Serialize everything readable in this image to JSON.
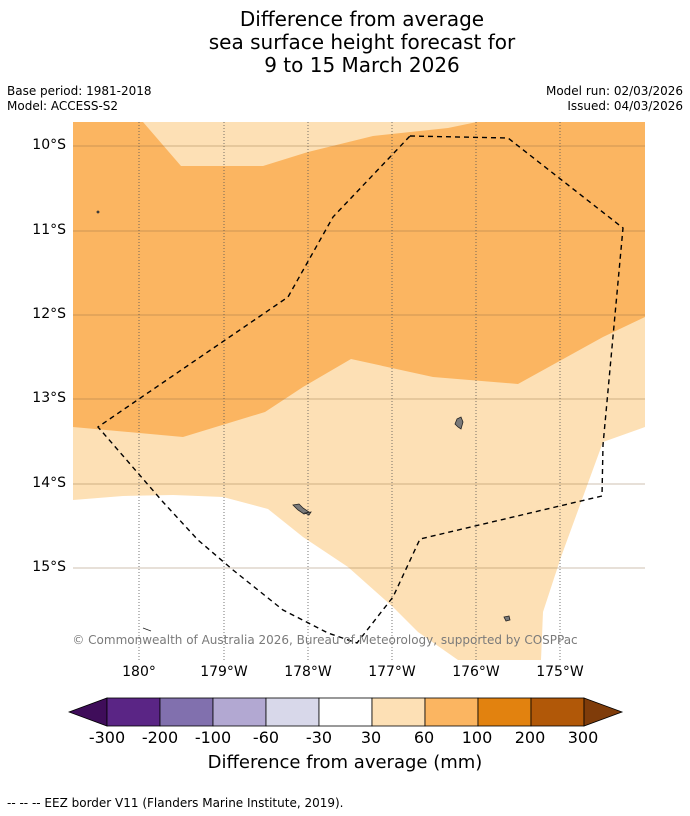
{
  "title": {
    "line1": "Difference from average",
    "line2": "sea surface height forecast for",
    "line3": "9 to 15 March 2026"
  },
  "meta": {
    "base_period": "Base period: 1981-2018",
    "model": "Model: ACCESS-S2",
    "model_run": "Model run: 02/03/2026",
    "issued": "Issued: 04/03/2026"
  },
  "latitude_labels": [
    "10°S",
    "11°S",
    "12°S",
    "13°S",
    "14°S",
    "15°S"
  ],
  "longitude_labels": [
    "180°",
    "179°W",
    "178°W",
    "177°W",
    "176°W",
    "175°W"
  ],
  "credit": "© Commonwealth of Australia 2026, Bureau of Meteorology, supported by COSPPac",
  "colorbar": {
    "label": "Difference from average (mm)",
    "ticks": [
      "-300",
      "-200",
      "-100",
      "-60",
      "-30",
      "30",
      "60",
      "100",
      "200",
      "300"
    ],
    "colors": [
      "#3f0d5a",
      "#5a2585",
      "#8170ae",
      "#b2a8d2",
      "#d8d8ea",
      "#ffffff",
      "#fde0b5",
      "#fbb561",
      "#e2820f",
      "#b15808",
      "#7f3c0a"
    ]
  },
  "legend_colors": {
    "band_30_60": "#fde0b5",
    "band_60_100": "#fbb561",
    "land": "#7a7a7a",
    "eez_border": "#000000"
  },
  "footer": "--  --  -- EEZ border V11 (Flanders Marine Institute, 2019)."
}
